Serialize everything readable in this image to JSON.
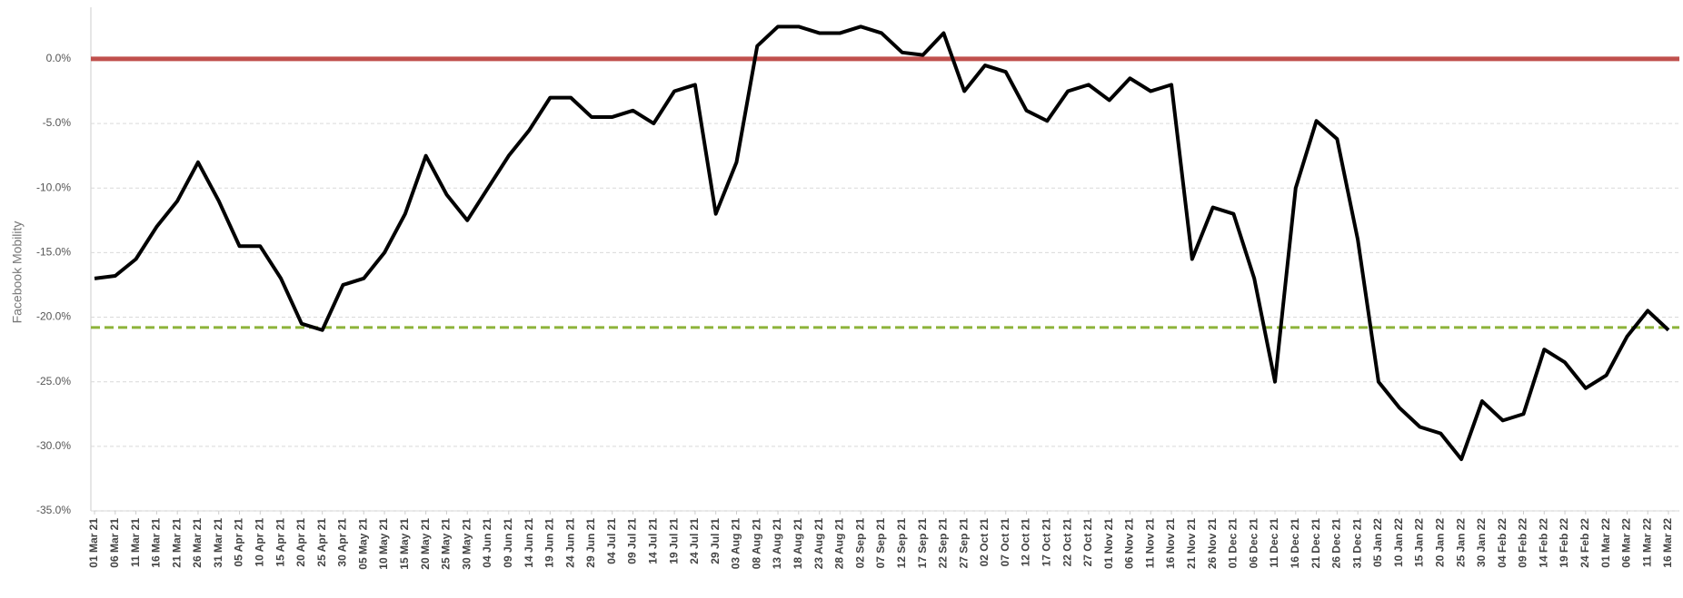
{
  "chart_data": {
    "type": "line",
    "y_label": "Facebook Mobility",
    "categories": [
      "01 Mar 21",
      "06 Mar 21",
      "11 Mar 21",
      "16 Mar 21",
      "21 Mar 21",
      "26 Mar 21",
      "31 Mar 21",
      "05 Apr 21",
      "10 Apr 21",
      "15 Apr 21",
      "20 Apr 21",
      "25 Apr 21",
      "30 Apr 21",
      "05 May 21",
      "10 May 21",
      "15 May 21",
      "20 May 21",
      "25 May 21",
      "30 May 21",
      "04 Jun 21",
      "09 Jun 21",
      "14 Jun 21",
      "19 Jun 21",
      "24 Jun 21",
      "29 Jun 21",
      "04 Jul 21",
      "09 Jul 21",
      "14 Jul 21",
      "19 Jul 21",
      "24 Jul 21",
      "29 Jul 21",
      "03 Aug 21",
      "08 Aug 21",
      "13 Aug 21",
      "18 Aug 21",
      "23 Aug 21",
      "28 Aug 21",
      "02 Sep 21",
      "07 Sep 21",
      "12 Sep 21",
      "17 Sep 21",
      "22 Sep 21",
      "27 Sep 21",
      "02 Oct 21",
      "07 Oct 21",
      "12 Oct 21",
      "17 Oct 21",
      "22 Oct 21",
      "27 Oct 21",
      "01 Nov 21",
      "06 Nov 21",
      "11 Nov 21",
      "16 Nov 21",
      "21 Nov 21",
      "26 Nov 21",
      "01 Dec 21",
      "06 Dec 21",
      "11 Dec 21",
      "16 Dec 21",
      "21 Dec 21",
      "26 Dec 21",
      "31 Dec 21",
      "05 Jan 22",
      "10 Jan 22",
      "15 Jan 22",
      "20 Jan 22",
      "25 Jan 22",
      "30 Jan 22",
      "04 Feb 22",
      "09 Feb 22",
      "14 Feb 22",
      "19 Feb 22",
      "24 Feb 22",
      "01 Mar 22",
      "06 Mar 22",
      "11 Mar 22",
      "16 Mar 22"
    ],
    "series": [
      {
        "name": "Facebook Mobility",
        "color": "#000000",
        "values": [
          -17.0,
          -16.8,
          -15.5,
          -13.0,
          -11.0,
          -8.0,
          -11.0,
          -14.5,
          -14.5,
          -17.0,
          -20.5,
          -21.0,
          -17.5,
          -17.0,
          -15.0,
          -12.0,
          -7.5,
          -10.5,
          -12.5,
          -10.0,
          -7.5,
          -5.5,
          -3.0,
          -3.0,
          -4.5,
          -4.5,
          -4.0,
          -5.0,
          -2.5,
          -2.0,
          -12.0,
          -8.0,
          1.0,
          2.5,
          2.5,
          2.0,
          2.0,
          2.5,
          2.0,
          0.5,
          0.3,
          2.0,
          -2.5,
          -0.5,
          -1.0,
          -4.0,
          -4.8,
          -2.5,
          -2.0,
          -3.2,
          -1.5,
          -2.5,
          -2.0,
          -15.5,
          -11.5,
          -12.0,
          -17.0,
          -25.0,
          -10.0,
          -4.8,
          -6.2,
          -14.0,
          -25.0,
          -27.0,
          -28.5,
          -29.0,
          -31.0,
          -26.5,
          -28.0,
          -27.5,
          -22.5,
          -23.5,
          -25.5,
          -24.5,
          -21.5,
          -19.5,
          -21.0
        ]
      }
    ],
    "reference_lines": [
      {
        "value": 0,
        "color": "#c0504d",
        "dash": false
      },
      {
        "value": -20.8,
        "color": "#8db33a",
        "dash": true
      }
    ],
    "ylim": [
      -35,
      4
    ],
    "yticks": [
      {
        "value": 0,
        "label": "0.0%"
      },
      {
        "value": -5,
        "label": "-5.0%"
      },
      {
        "value": -10,
        "label": "-10.0%"
      },
      {
        "value": -15,
        "label": "-15.0%"
      },
      {
        "value": -20,
        "label": "-20.0%"
      },
      {
        "value": -25,
        "label": "-25.0%"
      },
      {
        "value": -30,
        "label": "-30.0%"
      },
      {
        "value": -35,
        "label": "-35.0%"
      }
    ],
    "grid": true
  }
}
